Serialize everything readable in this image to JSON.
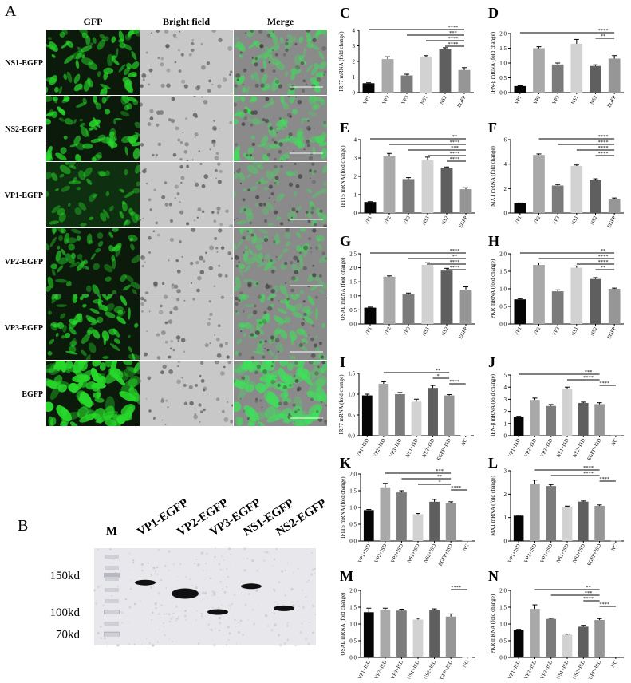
{
  "panelA": {
    "letter": "A",
    "headers": [
      "GFP",
      "Bright field",
      "Merge"
    ],
    "rows": [
      "NS1-EGFP",
      "NS2-EGFP",
      "VP1-EGFP",
      "VP2-EGFP",
      "VP3-EGFP",
      "EGFP"
    ],
    "gfp_intensity": [
      0.65,
      0.8,
      0.35,
      0.5,
      0.7,
      1.0
    ],
    "colors": {
      "gfp": "#27d82a",
      "bright_bg": "#c8c8c8",
      "dark_bg": "#0b1a0b"
    }
  },
  "panelB": {
    "letter": "B",
    "marker_label": "M",
    "lanes": [
      "VP1-EGFP",
      "VP2-EGFP",
      "VP3-EGFP",
      "NS1-EGFP",
      "NS2-EGFP"
    ],
    "mw_labels": [
      "150kd",
      "100kd",
      "70kd"
    ],
    "band_kd": [
      140,
      125,
      100,
      135,
      105
    ]
  },
  "chart_data": [
    {
      "letter": "C",
      "type": "bar",
      "ylabel": "IRF7 mRNA (fold change)",
      "categories": [
        "VP1",
        "VP2",
        "VP3",
        "NS1",
        "NS2",
        "EGFP"
      ],
      "values": [
        0.6,
        2.15,
        1.1,
        2.3,
        2.8,
        1.45
      ],
      "errors": [
        0.03,
        0.15,
        0.08,
        0.07,
        0.08,
        0.15
      ],
      "ylim": [
        0,
        4
      ],
      "yticks": [
        "0",
        "1",
        "2",
        "3",
        "4"
      ],
      "sig": [
        {
          "i": 0,
          "j": 5,
          "label": "****"
        },
        {
          "i": 2,
          "j": 5,
          "label": "***"
        },
        {
          "i": 3,
          "j": 5,
          "label": "****"
        },
        {
          "i": 4,
          "j": 5,
          "label": "****"
        }
      ]
    },
    {
      "letter": "D",
      "type": "bar",
      "ylabel": "IFN-β mRNA (fold change)",
      "categories": [
        "VP1",
        "VP2",
        "VP3",
        "NS1",
        "NS2",
        "EGFP"
      ],
      "values": [
        0.22,
        1.5,
        0.95,
        1.65,
        0.9,
        1.15
      ],
      "errors": [
        0.01,
        0.05,
        0.05,
        0.15,
        0.04,
        0.1
      ],
      "ylim": [
        0,
        2
      ],
      "yticks": [
        "0.0",
        "0.5",
        "1.0",
        "1.5",
        "2.0"
      ],
      "sig": [
        {
          "i": 0,
          "j": 5,
          "label": "****"
        },
        {
          "i": 4,
          "j": 5,
          "label": "**"
        }
      ]
    },
    {
      "letter": "E",
      "type": "bar",
      "ylabel": "IFIT5 mRNA (fold change)",
      "categories": [
        "VP1",
        "VP2",
        "VP3",
        "NS1",
        "NS2",
        "EGFP"
      ],
      "values": [
        0.6,
        3.1,
        1.85,
        2.9,
        2.45,
        1.3
      ],
      "errors": [
        0.02,
        0.15,
        0.08,
        0.15,
        0.06,
        0.08
      ],
      "ylim": [
        0,
        4
      ],
      "yticks": [
        "0",
        "1",
        "2",
        "3",
        "4"
      ],
      "sig": [
        {
          "i": 0,
          "j": 5,
          "label": "**"
        },
        {
          "i": 1,
          "j": 5,
          "label": "****"
        },
        {
          "i": 2,
          "j": 5,
          "label": "***"
        },
        {
          "i": 3,
          "j": 5,
          "label": "****"
        },
        {
          "i": 4,
          "j": 5,
          "label": "****"
        }
      ]
    },
    {
      "letter": "F",
      "type": "bar",
      "ylabel": "MX1 mRNA (fold change)",
      "categories": [
        "VP1",
        "VP2",
        "VP3",
        "NS1",
        "NS2",
        "EGFP"
      ],
      "values": [
        0.8,
        4.75,
        2.25,
        3.85,
        2.7,
        1.15
      ],
      "errors": [
        0.02,
        0.08,
        0.08,
        0.08,
        0.1,
        0.08
      ],
      "ylim": [
        0,
        6
      ],
      "yticks": [
        "0",
        "2",
        "4",
        "6"
      ],
      "sig": [
        {
          "i": 1,
          "j": 5,
          "label": "****"
        },
        {
          "i": 2,
          "j": 5,
          "label": "****"
        },
        {
          "i": 3,
          "j": 5,
          "label": "****"
        },
        {
          "i": 4,
          "j": 5,
          "label": "****"
        }
      ]
    },
    {
      "letter": "G",
      "type": "bar",
      "ylabel": "OSAL mRNA (fold change)",
      "categories": [
        "VP1",
        "VP2",
        "VP3",
        "NS1",
        "NS2",
        "EGFP"
      ],
      "values": [
        0.58,
        1.68,
        1.05,
        2.1,
        1.9,
        1.22
      ],
      "errors": [
        0.02,
        0.03,
        0.05,
        0.08,
        0.08,
        0.1
      ],
      "ylim": [
        0,
        2.5
      ],
      "yticks": [
        "0.0",
        "0.5",
        "1.0",
        "1.5",
        "2.0",
        "2.5"
      ],
      "sig": [
        {
          "i": 0,
          "j": 5,
          "label": "****"
        },
        {
          "i": 2,
          "j": 5,
          "label": "**"
        },
        {
          "i": 3,
          "j": 5,
          "label": "****"
        },
        {
          "i": 4,
          "j": 5,
          "label": "****"
        }
      ]
    },
    {
      "letter": "H",
      "type": "bar",
      "ylabel": "PKR mRNA (fold change)",
      "categories": [
        "VP1",
        "VP2",
        "VP3",
        "NS1",
        "NS2",
        "EGFP"
      ],
      "values": [
        0.7,
        1.68,
        0.93,
        1.6,
        1.28,
        1.0
      ],
      "errors": [
        0.02,
        0.06,
        0.04,
        0.05,
        0.04,
        0.02
      ],
      "ylim": [
        0,
        2
      ],
      "yticks": [
        "0.0",
        "0.5",
        "1.0",
        "1.5",
        "2.0"
      ],
      "sig": [
        {
          "i": 0,
          "j": 5,
          "label": "**"
        },
        {
          "i": 1,
          "j": 5,
          "label": "****"
        },
        {
          "i": 3,
          "j": 5,
          "label": "****"
        },
        {
          "i": 4,
          "j": 5,
          "label": "**"
        }
      ]
    },
    {
      "letter": "I",
      "type": "bar",
      "ylabel": "IRF7 mRNA (fold change)",
      "categories": [
        "VP1+ISD",
        "VP2+ISD",
        "VP3+ISD",
        "NS1+ISD",
        "NS2+ISD",
        "EGFP+ISD",
        "NC"
      ],
      "values": [
        0.97,
        1.25,
        1.0,
        0.82,
        1.15,
        0.97,
        0.01
      ],
      "errors": [
        0.03,
        0.05,
        0.04,
        0.06,
        0.06,
        0.02,
        0.0
      ],
      "ylim": [
        0,
        1.5
      ],
      "yticks": [
        "0.0",
        "0.5",
        "1.0",
        "1.5"
      ],
      "sig": [
        {
          "i": 1,
          "j": 5,
          "label": "**"
        },
        {
          "i": 4,
          "j": 5,
          "label": "*"
        },
        {
          "i": 5,
          "j": 6,
          "label": "****"
        }
      ]
    },
    {
      "letter": "J",
      "type": "bar",
      "ylabel": "IFN-β mRNA (fold change)",
      "categories": [
        "VP1+ISD",
        "VP2+ISD",
        "VP3+ISD",
        "NS1+ISD",
        "NS2+ISD",
        "EGFP+ISD",
        "NC"
      ],
      "values": [
        1.55,
        2.95,
        2.45,
        3.85,
        2.7,
        2.6,
        0.01
      ],
      "errors": [
        0.05,
        0.15,
        0.12,
        0.15,
        0.07,
        0.12,
        0.0
      ],
      "ylim": [
        0,
        5
      ],
      "yticks": [
        "0",
        "1",
        "2",
        "3",
        "4",
        "5"
      ],
      "sig": [
        {
          "i": 0,
          "j": 5,
          "label": "***"
        },
        {
          "i": 3,
          "j": 5,
          "label": "****"
        },
        {
          "i": 5,
          "j": 6,
          "label": "****"
        }
      ]
    },
    {
      "letter": "K",
      "type": "bar",
      "ylabel": "IFIT5 mRNA (fold change)",
      "categories": [
        "VP1+ISD",
        "VP2+ISD",
        "VP3+ISD",
        "NS1+ISD",
        "NS2+ISD",
        "EGFP+ISD",
        "NC"
      ],
      "values": [
        0.92,
        1.6,
        1.45,
        0.8,
        1.17,
        1.12,
        0.01
      ],
      "errors": [
        0.02,
        0.12,
        0.05,
        0.02,
        0.07,
        0.05,
        0.0
      ],
      "ylim": [
        0,
        2
      ],
      "yticks": [
        "0.0",
        "0.5",
        "1.0",
        "1.5",
        "2.0"
      ],
      "sig": [
        {
          "i": 1,
          "j": 5,
          "label": "***"
        },
        {
          "i": 2,
          "j": 5,
          "label": "**"
        },
        {
          "i": 3,
          "j": 5,
          "label": "*"
        },
        {
          "i": 5,
          "j": 6,
          "label": "****"
        }
      ]
    },
    {
      "letter": "L",
      "type": "bar",
      "ylabel": "MX1 mRNA (fold change)",
      "categories": [
        "VP1+ISD",
        "VP2+ISD",
        "VP3+ISD",
        "NS1+ISD",
        "NS2+ISD",
        "EGFP+ISD",
        "NC"
      ],
      "values": [
        1.08,
        2.45,
        2.35,
        1.45,
        1.68,
        1.5,
        0.01
      ],
      "errors": [
        0.02,
        0.15,
        0.06,
        0.04,
        0.03,
        0.04,
        0.0
      ],
      "ylim": [
        0,
        3
      ],
      "yticks": [
        "0",
        "1",
        "2",
        "3"
      ],
      "sig": [
        {
          "i": 1,
          "j": 5,
          "label": "****"
        },
        {
          "i": 2,
          "j": 5,
          "label": "****"
        },
        {
          "i": 5,
          "j": 6,
          "label": "****"
        }
      ]
    },
    {
      "letter": "M",
      "type": "bar",
      "ylabel": "OSAL mRNA (fold change)",
      "categories": [
        "VP1+ISD",
        "VP2+ISD",
        "VP3+ISD",
        "NS1+ISD",
        "NS2+ISD",
        "EGFP+ISD",
        "NC"
      ],
      "values": [
        1.35,
        1.42,
        1.4,
        1.13,
        1.42,
        1.22,
        0.0
      ],
      "errors": [
        0.12,
        0.05,
        0.04,
        0.04,
        0.03,
        0.08,
        0.0
      ],
      "ylim": [
        0,
        2
      ],
      "yticks": [
        "0.0",
        "0.5",
        "1.0",
        "1.5",
        "2.0"
      ],
      "sig": [
        {
          "i": 5,
          "j": 6,
          "label": "****"
        }
      ]
    },
    {
      "letter": "N",
      "type": "bar",
      "ylabel": "PKR mRNA (fold change)",
      "categories": [
        "VP1+ISD",
        "VP2+ISD",
        "VP3+ISD",
        "NS1+ISD",
        "NS2+ISD",
        "EGFP+ISD",
        "NC"
      ],
      "values": [
        0.82,
        1.45,
        1.15,
        0.68,
        0.92,
        1.12,
        0.02
      ],
      "errors": [
        0.02,
        0.12,
        0.02,
        0.02,
        0.04,
        0.04,
        0.0
      ],
      "ylim": [
        0,
        2
      ],
      "yticks": [
        "0.0",
        "0.5",
        "1.0",
        "1.5",
        "2.0"
      ],
      "sig": [
        {
          "i": 1,
          "j": 5,
          "label": "**"
        },
        {
          "i": 2,
          "j": 5,
          "label": "***"
        },
        {
          "i": 4,
          "j": 5,
          "label": "****"
        },
        {
          "i": 5,
          "j": 6,
          "label": "****"
        }
      ]
    }
  ],
  "bar_colors": [
    "#050505",
    "#a9a9a9",
    "#7b7b7b",
    "#d2d2d2",
    "#5f5f5f",
    "#969696",
    "#e4e4e4"
  ]
}
